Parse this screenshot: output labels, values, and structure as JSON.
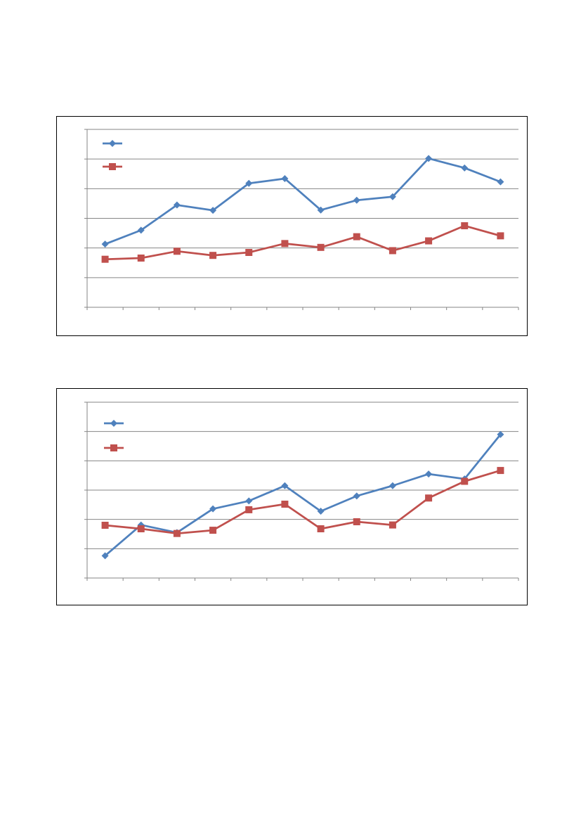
{
  "chart_data": [
    {
      "type": "line",
      "categories": [
        "",
        "",
        "",
        "",
        "",
        "",
        "",
        "",
        "",
        "",
        "",
        ""
      ],
      "ylim": [
        0,
        6
      ],
      "grid": true,
      "legend": "top-left",
      "series": [
        {
          "color": "#4F81BD",
          "marker": "diamond",
          "values": [
            2.13,
            2.6,
            3.45,
            3.27,
            4.18,
            4.34,
            3.28,
            3.61,
            3.73,
            5.02,
            4.7,
            4.23
          ]
        },
        {
          "color": "#C0504D",
          "marker": "square",
          "values": [
            1.62,
            1.66,
            1.89,
            1.75,
            1.85,
            2.15,
            2.02,
            2.38,
            1.91,
            2.24,
            2.75,
            2.41
          ]
        }
      ]
    },
    {
      "type": "line",
      "categories": [
        "",
        "",
        "",
        "",
        "",
        "",
        "",
        "",
        "",
        "",
        "",
        ""
      ],
      "ylim": [
        0,
        6
      ],
      "grid": true,
      "legend": "top-left",
      "series": [
        {
          "color": "#4F81BD",
          "marker": "diamond",
          "values": [
            0.76,
            1.81,
            1.55,
            2.36,
            2.63,
            3.15,
            2.28,
            2.8,
            3.15,
            3.55,
            3.38,
            4.9
          ]
        },
        {
          "color": "#C0504D",
          "marker": "square",
          "values": [
            1.8,
            1.68,
            1.52,
            1.63,
            2.33,
            2.52,
            1.68,
            1.92,
            1.81,
            2.73,
            3.3,
            3.67
          ]
        }
      ]
    }
  ]
}
